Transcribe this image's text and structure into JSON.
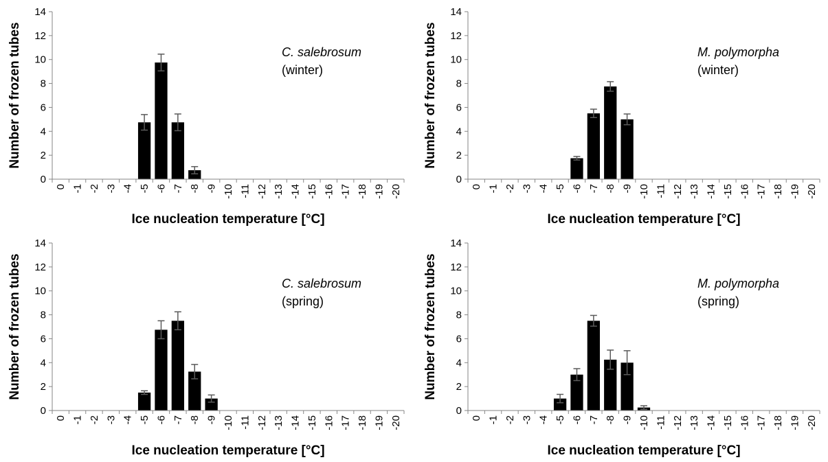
{
  "chart_data": [
    {
      "type": "bar",
      "panel": "top-left",
      "xlabel": "Ice nucleation temperature [°C]",
      "ylabel": "Number of frozen tubes",
      "ylim": [
        0,
        14
      ],
      "yticks": [
        0,
        2,
        4,
        6,
        8,
        10,
        12,
        14
      ],
      "categories": [
        "0",
        "-1",
        "-2",
        "-3",
        "-4",
        "-5",
        "-6",
        "-7",
        "-8",
        "-9",
        "-10",
        "-11",
        "-12",
        "-13",
        "-14",
        "-15",
        "-16",
        "-17",
        "-18",
        "-19",
        "-20"
      ],
      "values": [
        0,
        0,
        0,
        0,
        0,
        4.75,
        9.75,
        4.75,
        0.75,
        0,
        0,
        0,
        0,
        0,
        0,
        0,
        0,
        0,
        0,
        0,
        0
      ],
      "errors": [
        0,
        0,
        0,
        0,
        0,
        0.65,
        0.7,
        0.7,
        0.3,
        0,
        0,
        0,
        0,
        0,
        0,
        0,
        0,
        0,
        0,
        0,
        0
      ],
      "annotation_species": "C. salebrosum",
      "annotation_season": "(winter)"
    },
    {
      "type": "bar",
      "panel": "top-right",
      "xlabel": "Ice nucleation temperature [°C]",
      "ylabel": "Number of frozen tubes",
      "ylim": [
        0,
        14
      ],
      "yticks": [
        0,
        2,
        4,
        6,
        8,
        10,
        12,
        14
      ],
      "categories": [
        "0",
        "-1",
        "-2",
        "-3",
        "-4",
        "-5",
        "-6",
        "-7",
        "-8",
        "-9",
        "-10",
        "-11",
        "-12",
        "-13",
        "-14",
        "-15",
        "-16",
        "-17",
        "-18",
        "-19",
        "-20"
      ],
      "values": [
        0,
        0,
        0,
        0,
        0,
        0,
        1.75,
        5.5,
        7.75,
        5.0,
        0,
        0,
        0,
        0,
        0,
        0,
        0,
        0,
        0,
        0,
        0
      ],
      "errors": [
        0,
        0,
        0,
        0,
        0,
        0,
        0.15,
        0.35,
        0.4,
        0.45,
        0,
        0,
        0,
        0,
        0,
        0,
        0,
        0,
        0,
        0,
        0
      ],
      "annotation_species": "M. polymorpha",
      "annotation_season": "(winter)"
    },
    {
      "type": "bar",
      "panel": "bottom-left",
      "xlabel": "Ice nucleation temperature [°C]",
      "ylabel": "Number of frozen tubes",
      "ylim": [
        0,
        14
      ],
      "yticks": [
        0,
        2,
        4,
        6,
        8,
        10,
        12,
        14
      ],
      "categories": [
        "0",
        "-1",
        "-2",
        "-3",
        "-4",
        "-5",
        "-6",
        "-7",
        "-8",
        "-9",
        "-10",
        "-11",
        "-12",
        "-13",
        "-14",
        "-15",
        "-16",
        "-17",
        "-18",
        "-19",
        "-20"
      ],
      "values": [
        0,
        0,
        0,
        0,
        0,
        1.5,
        6.75,
        7.5,
        3.25,
        1.0,
        0,
        0,
        0,
        0,
        0,
        0,
        0,
        0,
        0,
        0,
        0
      ],
      "errors": [
        0,
        0,
        0,
        0,
        0,
        0.15,
        0.75,
        0.75,
        0.6,
        0.3,
        0,
        0,
        0,
        0,
        0,
        0,
        0,
        0,
        0,
        0,
        0
      ],
      "annotation_species": "C. salebrosum",
      "annotation_season": "(spring)"
    },
    {
      "type": "bar",
      "panel": "bottom-right",
      "xlabel": "Ice nucleation temperature [°C]",
      "ylabel": "Number of frozen tubes",
      "ylim": [
        0,
        14
      ],
      "yticks": [
        0,
        2,
        4,
        6,
        8,
        10,
        12,
        14
      ],
      "categories": [
        "0",
        "-1",
        "-2",
        "-3",
        "-4",
        "-5",
        "-6",
        "-7",
        "-8",
        "-9",
        "-10",
        "-11",
        "-12",
        "-13",
        "-14",
        "-15",
        "-16",
        "-17",
        "-18",
        "-19",
        "-20"
      ],
      "values": [
        0,
        0,
        0,
        0,
        0,
        1.0,
        3.0,
        7.5,
        4.25,
        4.0,
        0.25,
        0,
        0,
        0,
        0,
        0,
        0,
        0,
        0,
        0,
        0
      ],
      "errors": [
        0,
        0,
        0,
        0,
        0,
        0.35,
        0.5,
        0.45,
        0.8,
        1.0,
        0.15,
        0,
        0,
        0,
        0,
        0,
        0,
        0,
        0,
        0,
        0
      ],
      "annotation_species": "M. polymorpha",
      "annotation_season": "(spring)"
    }
  ]
}
